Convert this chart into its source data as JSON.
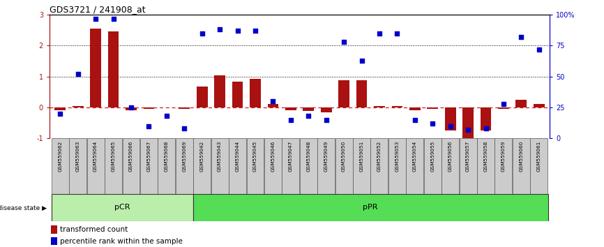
{
  "title": "GDS3721 / 241908_at",
  "samples": [
    "GSM559062",
    "GSM559063",
    "GSM559064",
    "GSM559065",
    "GSM559066",
    "GSM559067",
    "GSM559068",
    "GSM559069",
    "GSM559042",
    "GSM559043",
    "GSM559044",
    "GSM559045",
    "GSM559046",
    "GSM559047",
    "GSM559048",
    "GSM559049",
    "GSM559050",
    "GSM559051",
    "GSM559052",
    "GSM559053",
    "GSM559054",
    "GSM559055",
    "GSM559056",
    "GSM559057",
    "GSM559058",
    "GSM559059",
    "GSM559060",
    "GSM559061"
  ],
  "transformed_count": [
    -0.08,
    0.04,
    2.56,
    2.47,
    -0.1,
    -0.05,
    0.0,
    -0.04,
    0.68,
    1.05,
    0.83,
    0.92,
    0.12,
    -0.08,
    -0.12,
    -0.16,
    0.88,
    0.88,
    0.04,
    0.04,
    -0.08,
    -0.04,
    -0.75,
    -1.0,
    -0.75,
    -0.04,
    0.25,
    0.12
  ],
  "percentile_rank": [
    20,
    52,
    97,
    97,
    25,
    10,
    18,
    8,
    85,
    88,
    87,
    87,
    30,
    15,
    18,
    15,
    78,
    63,
    85,
    85,
    15,
    12,
    10,
    7,
    8,
    28,
    82,
    72
  ],
  "groups": [
    {
      "label": "pCR",
      "start": 0,
      "end": 8,
      "color": "#bbeeaa"
    },
    {
      "label": "pPR",
      "start": 8,
      "end": 28,
      "color": "#55dd55"
    }
  ],
  "bar_color": "#aa1111",
  "dot_color": "#0000cc",
  "ylim": [
    -1,
    3
  ],
  "y2lim": [
    0,
    100
  ],
  "yticks": [
    -1,
    0,
    1,
    2,
    3
  ],
  "y2ticks": [
    0,
    25,
    50,
    75,
    100
  ],
  "y2ticklabels": [
    "0",
    "25",
    "50",
    "75",
    "100%"
  ],
  "tick_label_bg": "#cccccc",
  "disease_state_label": "disease state",
  "legend_tc": "transformed count",
  "legend_pr": "percentile rank within the sample",
  "fig_width": 8.66,
  "fig_height": 3.54
}
